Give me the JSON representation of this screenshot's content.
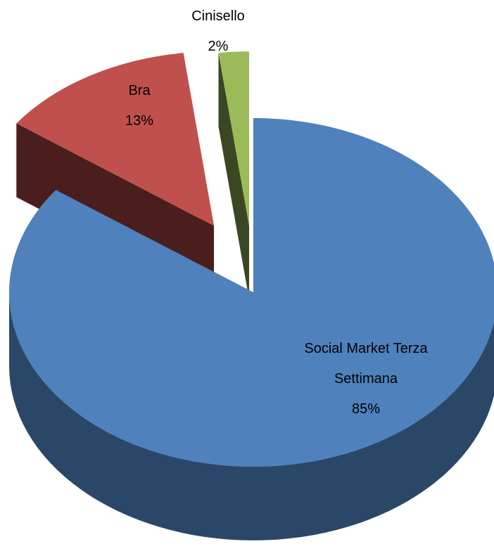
{
  "chart_data": {
    "type": "pie",
    "categories": [
      "Social Market Terza Settimana",
      "Bra",
      "Cinisello"
    ],
    "values": [
      85,
      13,
      2
    ],
    "value_labels": [
      "85%",
      "13%",
      "2%"
    ],
    "colors": [
      "#4f81bd",
      "#c0504d",
      "#9bbb59"
    ]
  }
}
